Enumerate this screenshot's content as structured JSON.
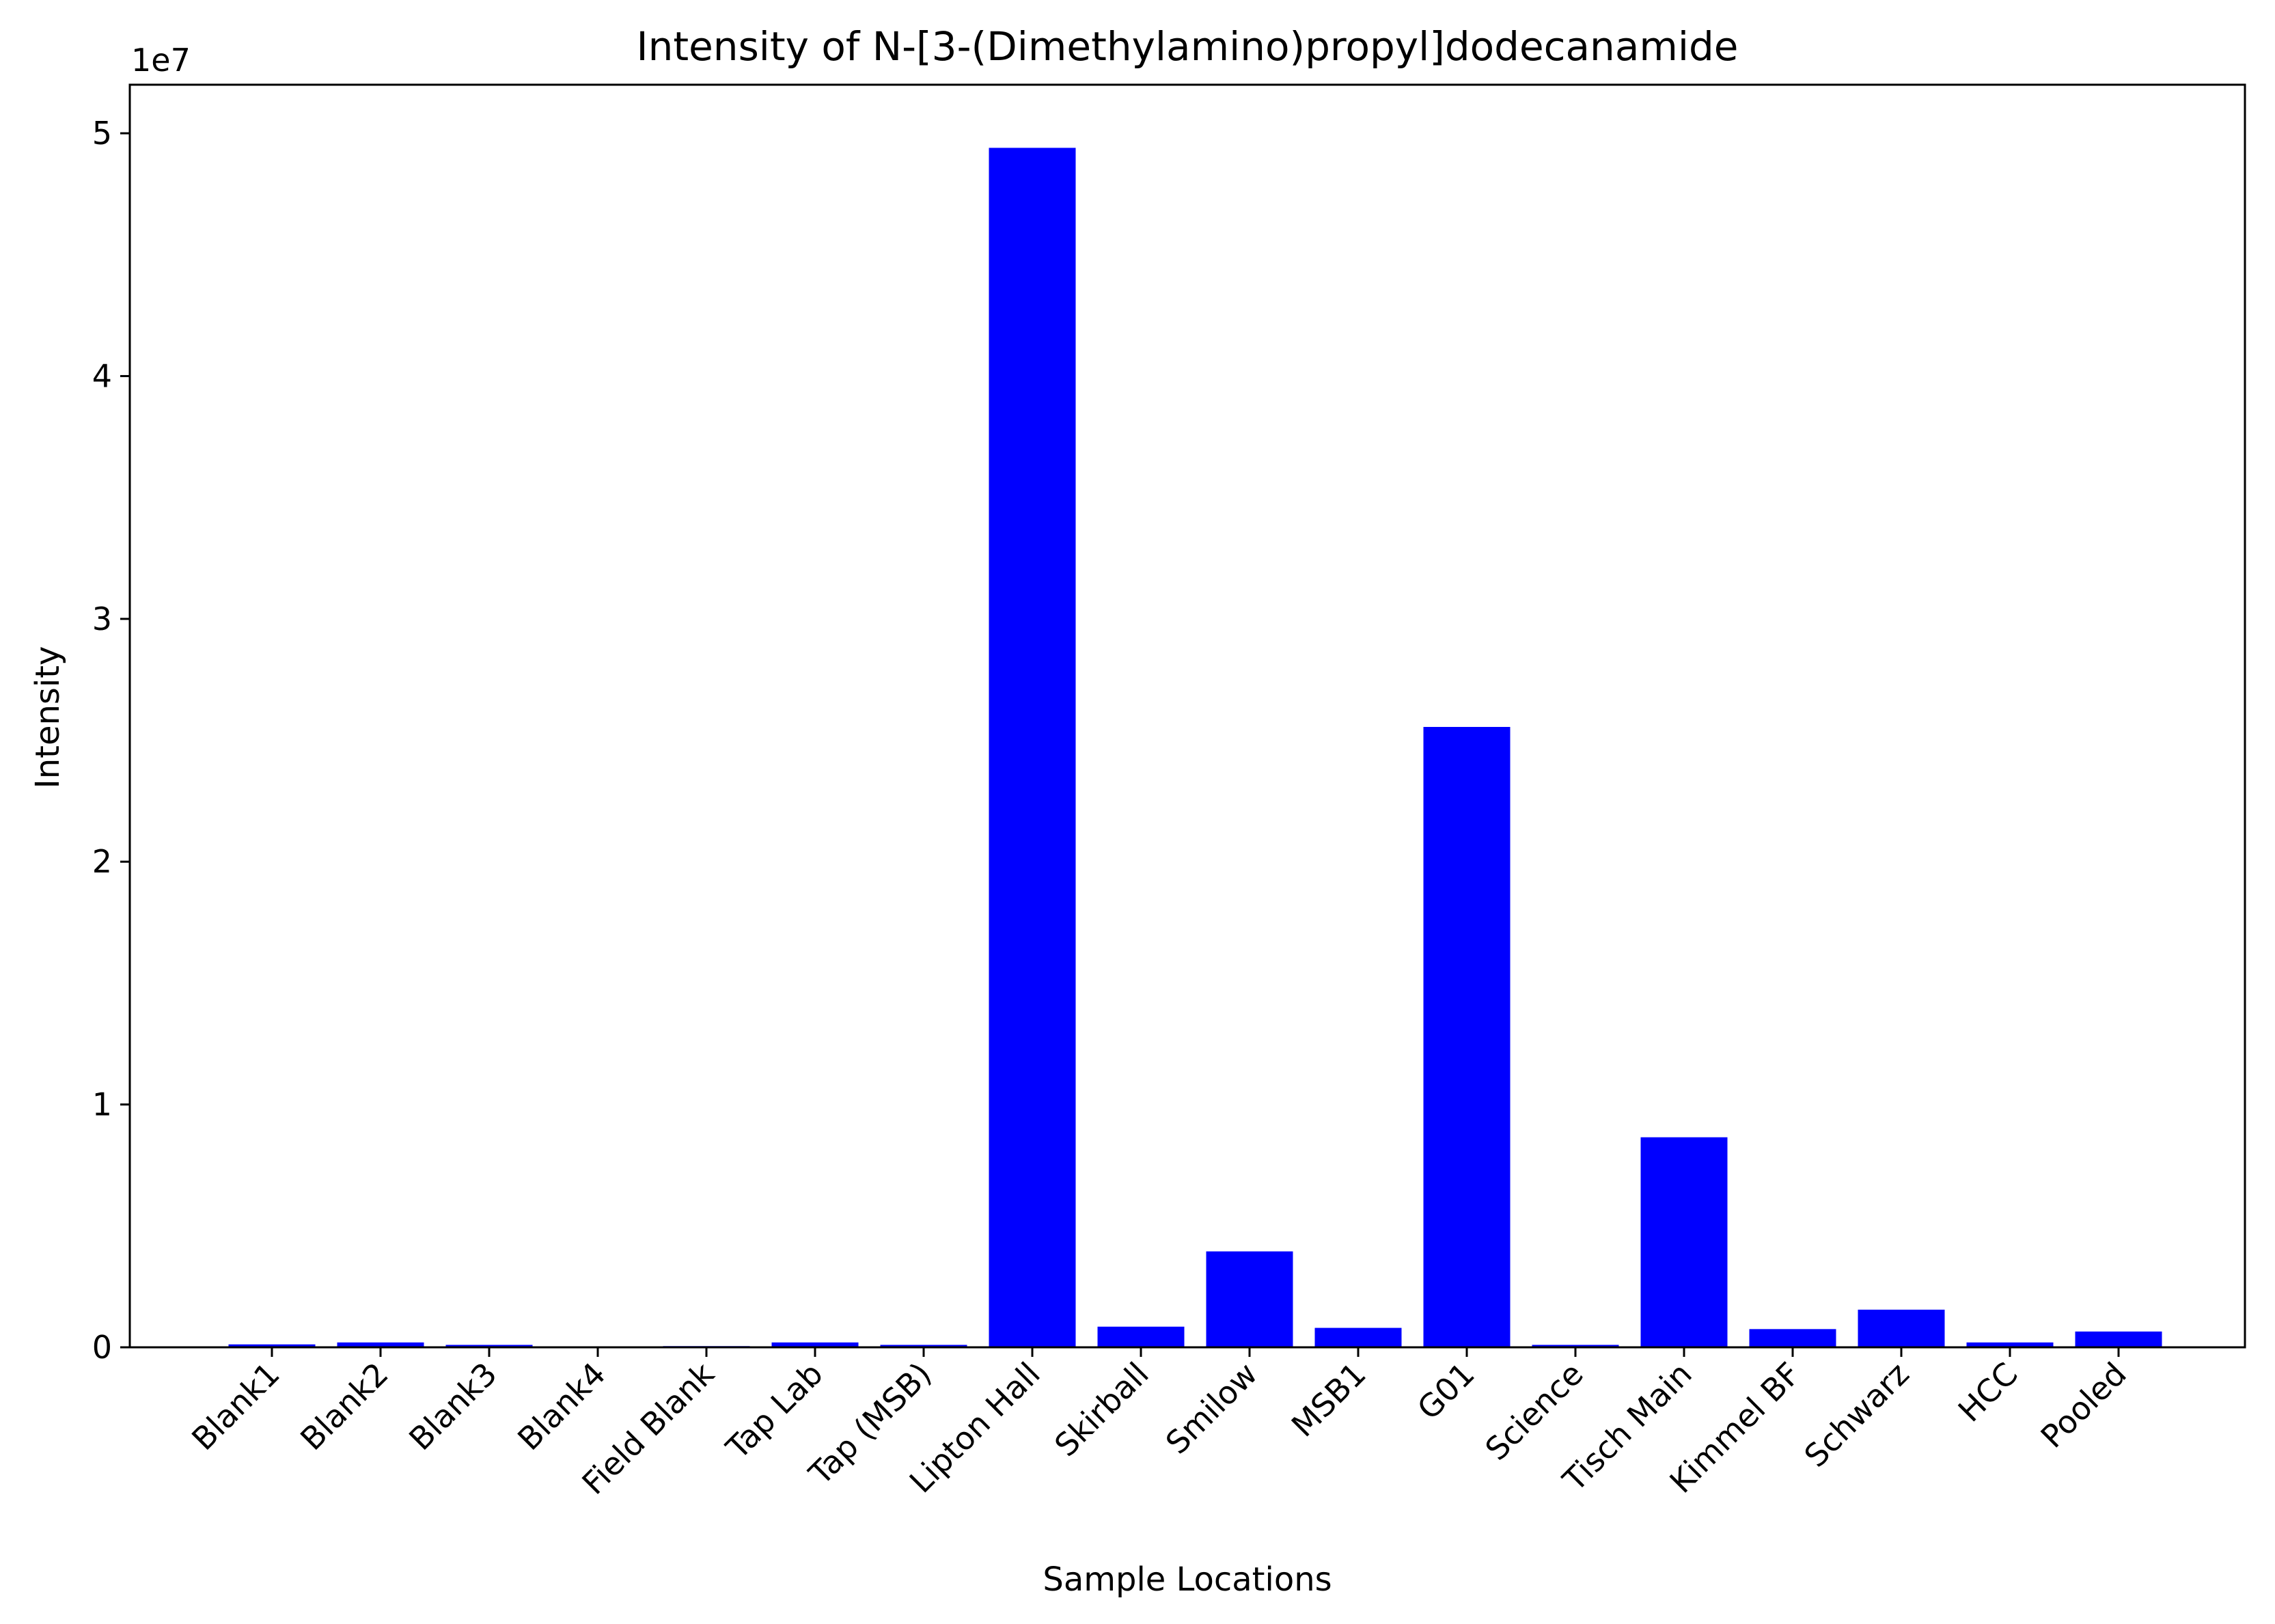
{
  "chart_data": {
    "type": "bar",
    "title": "Intensity of N-[3-(Dimethylamino)propyl]dodecanamide",
    "xlabel": "Sample Locations",
    "ylabel": "Intensity",
    "y_offset_label": "1e7",
    "y_scale": 10000000,
    "ylim": [
      0,
      52000000
    ],
    "yticks": [
      0,
      10000000,
      20000000,
      30000000,
      40000000,
      50000000
    ],
    "ytick_labels": [
      "0",
      "1",
      "2",
      "3",
      "4",
      "5"
    ],
    "categories": [
      "Blank1",
      "Blank2",
      "Blank3",
      "Blank4",
      "Field Blank",
      "Tap Lab",
      "Tap (MSB)",
      "Lipton Hall",
      "Skirball",
      "Smilow",
      "MSB1",
      "G01",
      "Science",
      "Tisch Main",
      "Kimmel BF",
      "Schwarz",
      "HCC",
      "Pooled"
    ],
    "values": [
      120000,
      200000,
      100000,
      10000,
      50000,
      200000,
      100000,
      49400000,
      850000,
      3950000,
      800000,
      25550000,
      100000,
      8650000,
      750000,
      1550000,
      200000,
      650000
    ],
    "bar_color": "#0000ff",
    "grid": false,
    "legend": "none"
  }
}
